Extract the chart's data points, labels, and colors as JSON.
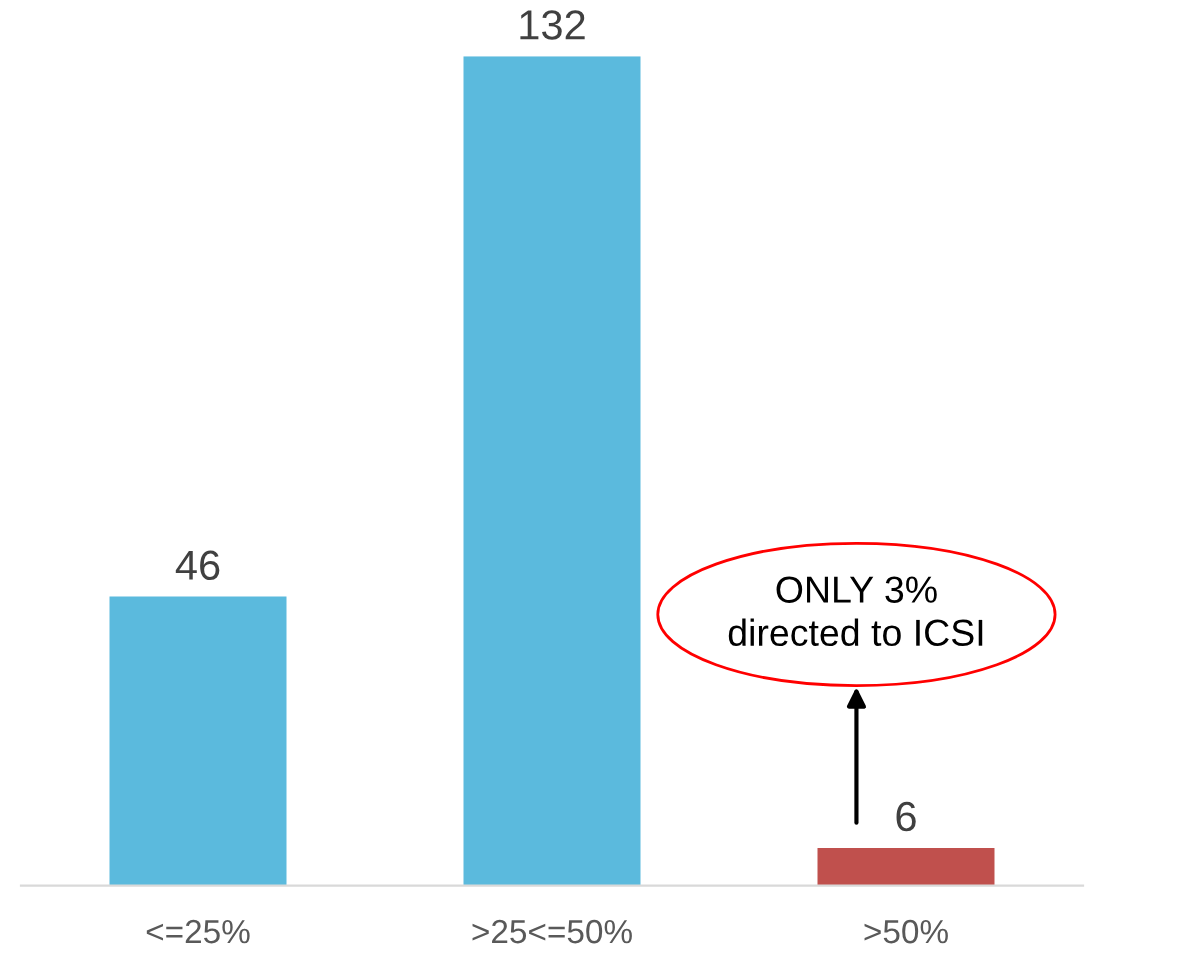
{
  "chart_data": {
    "type": "bar",
    "categories": [
      "<=25%",
      ">25<=50%",
      ">50%"
    ],
    "values": [
      46,
      132,
      6
    ],
    "colors": [
      "#5bbadd",
      "#5bbadd",
      "#c0504d"
    ],
    "ylim": [
      0,
      132
    ],
    "data_labels": true,
    "grid": false,
    "annotations": [
      "ONLY 3%\ndirected to ICSI"
    ]
  }
}
